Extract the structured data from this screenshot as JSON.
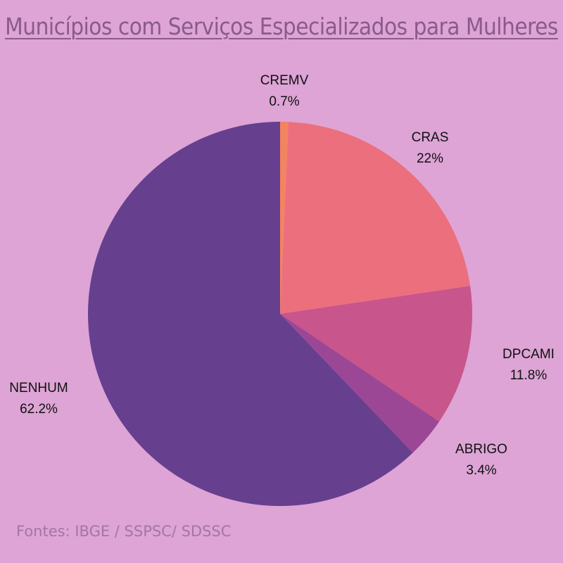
{
  "chart_data": {
    "type": "pie",
    "title": "Municípios com Serviços Especializados para Mulheres",
    "slices": [
      {
        "name": "CREMV",
        "value": 0.7,
        "label": "0.7%",
        "color": "#f4845f"
      },
      {
        "name": "CRAS",
        "value": 22,
        "label": "22%",
        "color": "#ec6f7e"
      },
      {
        "name": "DPCAMI",
        "value": 11.8,
        "label": "11.8%",
        "color": "#c8558b"
      },
      {
        "name": "ABRIGO",
        "value": 3.4,
        "label": "3.4%",
        "color": "#9c4795"
      },
      {
        "name": "NENHUM",
        "value": 62.2,
        "label": "62.2%",
        "color": "#673f8f"
      }
    ],
    "start": "top",
    "direction": "clockwise"
  },
  "source": "Fontes: IBGE / SSPSC/ SDSSC",
  "colors": {
    "background": "#dda4d5",
    "title": "#8a5a8c",
    "source": "#a377a3"
  }
}
